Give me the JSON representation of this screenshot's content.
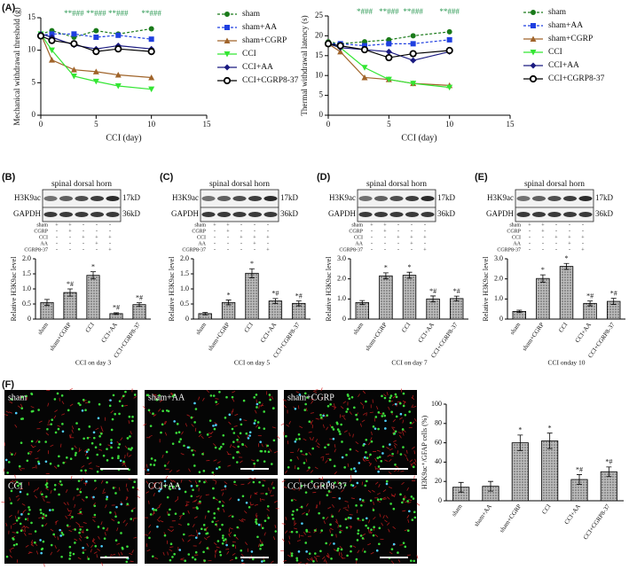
{
  "panel_labels": [
    "(A)",
    "(B)",
    "(C)",
    "(D)",
    "(E)",
    "(F)"
  ],
  "blots": [
    {
      "title": "spinal dorsal horn",
      "bands": [
        "H3K9ac",
        "GAPDH"
      ],
      "sizes": [
        "17kD",
        "36kD"
      ],
      "rows": [
        {
          "name": "sham",
          "signs": [
            "+",
            "+",
            "-",
            "-",
            "-"
          ]
        },
        {
          "name": "CGRP",
          "signs": [
            "-",
            "+",
            "-",
            "-",
            "-"
          ]
        },
        {
          "name": "CCI",
          "signs": [
            "-",
            "-",
            "+",
            "+",
            "+"
          ]
        },
        {
          "name": "AA",
          "signs": [
            "-",
            "-",
            "-",
            "+",
            "-"
          ]
        },
        {
          "name": "CGRP8-37",
          "signs": [
            "-",
            "-",
            "-",
            "-",
            "+"
          ]
        }
      ]
    },
    {
      "title": "spinal dorsal horn",
      "bands": [
        "H3K9ac",
        "GAPDH"
      ],
      "sizes": [
        "17kD",
        "36kD"
      ],
      "rows": [
        {
          "name": "sham",
          "signs": [
            "+",
            "+",
            "-",
            "-",
            "-"
          ]
        },
        {
          "name": "CGRP",
          "signs": [
            "-",
            "+",
            "-",
            "-",
            "-"
          ]
        },
        {
          "name": "CCI",
          "signs": [
            "-",
            "-",
            "+",
            "+",
            "+"
          ]
        },
        {
          "name": "AA",
          "signs": [
            "-",
            "-",
            "-",
            "+",
            "-"
          ]
        },
        {
          "name": "CGRP8-37",
          "signs": [
            "-",
            "-",
            "-",
            "-",
            "+"
          ]
        }
      ]
    },
    {
      "title": "spinal dorsal horn",
      "bands": [
        "H3K9ac",
        "GAPDH"
      ],
      "sizes": [
        "17kD",
        "36kD"
      ],
      "rows": [
        {
          "name": "sham",
          "signs": [
            "+",
            "+",
            "-",
            "-",
            "-"
          ]
        },
        {
          "name": "CGRP",
          "signs": [
            "-",
            "+",
            "-",
            "-",
            "-"
          ]
        },
        {
          "name": "CCI",
          "signs": [
            "-",
            "-",
            "+",
            "+",
            "+"
          ]
        },
        {
          "name": "AA",
          "signs": [
            "-",
            "-",
            "-",
            "+",
            "-"
          ]
        },
        {
          "name": "CGRP8-37",
          "signs": [
            "-",
            "-",
            "-",
            "-",
            "+"
          ]
        }
      ]
    },
    {
      "title": "spinal dorsal horn",
      "bands": [
        "H3K9ac",
        "GAPDH"
      ],
      "sizes": [
        "17kD",
        "36kD"
      ],
      "rows": [
        {
          "name": "sham",
          "signs": [
            "+",
            "+",
            "-",
            "-",
            "-"
          ]
        },
        {
          "name": "CGRP",
          "signs": [
            "-",
            "+",
            "-",
            "-",
            "-"
          ]
        },
        {
          "name": "CCI",
          "signs": [
            "-",
            "-",
            "+",
            "+",
            "+"
          ]
        },
        {
          "name": "AA",
          "signs": [
            "-",
            "-",
            "-",
            "+",
            "-"
          ]
        },
        {
          "name": "CGRP8-37",
          "signs": [
            "-",
            "-",
            "-",
            "-",
            "+"
          ]
        }
      ]
    }
  ],
  "micrographs": [
    "sham",
    "sham+AA",
    "sham+CGRP",
    "CCI",
    "CCI+AA",
    "CCI+CGRP8-37"
  ],
  "chart_data": [
    {
      "type": "line",
      "y_label": "Mechanical withdrawal threshold (g)",
      "x_label": "CCI  (day)",
      "x": [
        0,
        1,
        3,
        5,
        7,
        10
      ],
      "xlim": [
        0,
        15
      ],
      "xticks": [
        0,
        5,
        10,
        15
      ],
      "ylim": [
        0,
        15
      ],
      "yticks": [
        0,
        5,
        10,
        15
      ],
      "series": [
        {
          "name": "sham",
          "color": "#1a7a1a",
          "marker": "circle",
          "dash": true,
          "values": [
            12.5,
            13,
            12,
            13,
            12.5,
            13.3
          ]
        },
        {
          "name": "sham+AA",
          "color": "#1f3fe0",
          "marker": "square",
          "dash": true,
          "values": [
            12.3,
            12.5,
            12.5,
            12,
            12.3,
            11.7
          ]
        },
        {
          "name": "sham+CGRP",
          "color": "#a0642a",
          "marker": "triangle",
          "dash": false,
          "values": [
            12.5,
            8.5,
            7,
            6.7,
            6.2,
            5.8
          ]
        },
        {
          "name": "CCI",
          "color": "#33e633",
          "marker": "triangle-down",
          "dash": false,
          "values": [
            12.5,
            10,
            6,
            5.2,
            4.5,
            4
          ]
        },
        {
          "name": "CCI+AA",
          "color": "#1a1a80",
          "marker": "diamond",
          "dash": false,
          "values": [
            12.5,
            12,
            10.8,
            10.2,
            10.7,
            10.2
          ]
        },
        {
          "name": "CCI+CGRP8-37",
          "color": "#000000",
          "marker": "open-circle",
          "dash": false,
          "values": [
            12.2,
            11.5,
            11,
            9.8,
            10.2,
            9.8
          ]
        }
      ],
      "annotations": [
        {
          "x": 3,
          "text": "**###"
        },
        {
          "x": 5,
          "text": "**###"
        },
        {
          "x": 7,
          "text": "**###"
        },
        {
          "x": 10,
          "text": "**###"
        }
      ]
    },
    {
      "type": "line",
      "y_label": "Thermal withdrawal latency (s)",
      "x_label": "CCI  (day)",
      "x": [
        0,
        1,
        3,
        5,
        7,
        10
      ],
      "xlim": [
        0,
        15
      ],
      "xticks": [
        0,
        5,
        10,
        15
      ],
      "ylim": [
        0,
        25
      ],
      "yticks": [
        0,
        5,
        10,
        15,
        20,
        25
      ],
      "series": [
        {
          "name": "sham",
          "color": "#1a7a1a",
          "marker": "circle",
          "dash": true,
          "values": [
            18.5,
            18,
            18.5,
            19,
            20,
            21
          ]
        },
        {
          "name": "sham+AA",
          "color": "#1f3fe0",
          "marker": "square",
          "dash": true,
          "values": [
            18,
            18,
            17.5,
            18,
            18,
            19
          ]
        },
        {
          "name": "sham+CGRP",
          "color": "#a0642a",
          "marker": "triangle",
          "dash": false,
          "values": [
            18,
            16,
            9.5,
            9,
            8,
            7.5
          ]
        },
        {
          "name": "CCI",
          "color": "#33e633",
          "marker": "triangle-down",
          "dash": false,
          "values": [
            18,
            17,
            12,
            9,
            8,
            7
          ]
        },
        {
          "name": "CCI+AA",
          "color": "#1a1a80",
          "marker": "diamond",
          "dash": false,
          "values": [
            18,
            17,
            16.5,
            16,
            13.8,
            16
          ]
        },
        {
          "name": "CCI+CGRP8-37",
          "color": "#000000",
          "marker": "open-circle",
          "dash": false,
          "values": [
            18,
            17.5,
            16.5,
            14.5,
            15.5,
            16.3
          ]
        }
      ],
      "annotations": [
        {
          "x": 3,
          "text": "*###"
        },
        {
          "x": 5,
          "text": "**###"
        },
        {
          "x": 7,
          "text": "**###"
        },
        {
          "x": 10,
          "text": "**###"
        }
      ]
    },
    {
      "type": "bar",
      "y_label": "Relative H3K9ac level",
      "x_label": "CCI on day 3",
      "categories": [
        "sham",
        "sham+CGRP",
        "CCI",
        "CCI+AA",
        "CCI+CGRP8-37"
      ],
      "values": [
        0.55,
        0.88,
        1.45,
        0.18,
        0.48
      ],
      "errors": [
        0.1,
        0.12,
        0.12,
        0.03,
        0.06
      ],
      "significance": [
        null,
        "*#",
        "*",
        "*#",
        "*#"
      ],
      "ylim": [
        0,
        2
      ],
      "yticks": [
        0,
        0.5,
        {
          "value": 1,
          "label": "1.0"
        },
        1.5,
        {
          "value": 2,
          "label": "2.0"
        }
      ]
    },
    {
      "type": "bar",
      "y_label": "Relative H3K9ac level",
      "x_label": "CCI on day 5",
      "categories": [
        "sham",
        "sham+CGRP",
        "CCI",
        "CCI+AA",
        "CCI+CGRP8-37"
      ],
      "values": [
        0.18,
        0.55,
        1.52,
        0.6,
        0.52
      ],
      "errors": [
        0.04,
        0.08,
        0.15,
        0.08,
        0.08
      ],
      "significance": [
        null,
        "*",
        "*",
        "*#",
        "*#"
      ],
      "ylim": [
        0,
        2
      ],
      "yticks": [
        0,
        0.5,
        {
          "value": 1,
          "label": "1.0"
        },
        1.5,
        {
          "value": 2,
          "label": "2.0"
        }
      ]
    },
    {
      "type": "bar",
      "y_label": "Relative H3K9ac level",
      "x_label": "CCI on day 7",
      "categories": [
        "sham",
        "sham+CGRP",
        "CCI",
        "CCI+AA",
        "CCI+CGRP8-37"
      ],
      "values": [
        0.82,
        2.15,
        2.18,
        1.0,
        1.02
      ],
      "errors": [
        0.1,
        0.15,
        0.15,
        0.15,
        0.12
      ],
      "significance": [
        null,
        "*",
        "*",
        "*#",
        "*#"
      ],
      "ylim": [
        0,
        3
      ],
      "yticks": [
        0,
        {
          "value": 1,
          "label": "1.0"
        },
        {
          "value": 2,
          "label": "2.0"
        },
        {
          "value": 3,
          "label": "3.0"
        }
      ]
    },
    {
      "type": "bar",
      "y_label": "Relative H3K9ac level",
      "x_label": "CCI onday 10",
      "categories": [
        "sham",
        "sham+CGRP",
        "CCI",
        "CCI+AA",
        "CCI+CGRP8-37"
      ],
      "values": [
        0.38,
        2.02,
        2.62,
        0.78,
        0.88
      ],
      "errors": [
        0.06,
        0.18,
        0.15,
        0.12,
        0.15
      ],
      "significance": [
        null,
        "*",
        "*",
        "*#",
        "*#"
      ],
      "ylim": [
        0,
        3
      ],
      "yticks": [
        0,
        {
          "value": 1,
          "label": "1.0"
        },
        {
          "value": 2,
          "label": "2.0"
        },
        {
          "value": 3,
          "label": "3.0"
        }
      ]
    },
    {
      "type": "bar",
      "y_label": "H3K9ac⁺/GFAP cells (%)",
      "categories": [
        "sham",
        "sham+AA",
        "sham+CGRP",
        "CCI",
        "CCI+AA",
        "CCI+CGRP8-37"
      ],
      "values": [
        14,
        15,
        60,
        62,
        22,
        30
      ],
      "errors": [
        5,
        5,
        8,
        8,
        5,
        5
      ],
      "significance": [
        null,
        null,
        "*",
        "*",
        "*#",
        "*#"
      ],
      "ylim": [
        0,
        100
      ],
      "yticks": [
        0,
        20,
        40,
        60,
        80,
        100
      ]
    }
  ]
}
